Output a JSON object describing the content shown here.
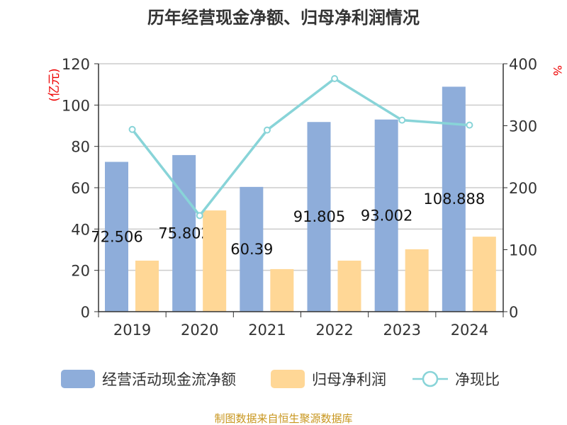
{
  "chart_data": {
    "type": "bar",
    "title": "历年经营现金净额、归母净利润情况",
    "categories": [
      "2019",
      "2020",
      "2021",
      "2022",
      "2023",
      "2024"
    ],
    "y_left": {
      "label": "(亿元)",
      "range": [
        0,
        120
      ],
      "ticks": [
        0,
        20,
        40,
        60,
        80,
        100,
        120
      ]
    },
    "y_right": {
      "label": "%",
      "range": [
        0,
        400
      ],
      "ticks": [
        0,
        100,
        200,
        300,
        400
      ]
    },
    "grid": true,
    "legend_placement": "bottom",
    "series": [
      {
        "name": "经营活动现金流净额",
        "type": "bar",
        "axis": "left",
        "color": "#8eadda",
        "values": [
          72.506,
          75.802,
          60.39,
          91.805,
          93.002,
          108.888
        ],
        "labels": [
          "72.506",
          "75.802",
          "60.39",
          "91.805",
          "93.002",
          "108.888"
        ]
      },
      {
        "name": "归母净利润",
        "type": "bar",
        "axis": "left",
        "color": "#ffd796",
        "values": [
          24.7,
          49.0,
          20.6,
          24.7,
          30.2,
          36.3
        ]
      },
      {
        "name": "净现比",
        "type": "line",
        "axis": "right",
        "color": "#88d4d8",
        "values": [
          294,
          155,
          293,
          376,
          309,
          301
        ]
      }
    ],
    "source": "制图数据来自恒生聚源数据库"
  }
}
